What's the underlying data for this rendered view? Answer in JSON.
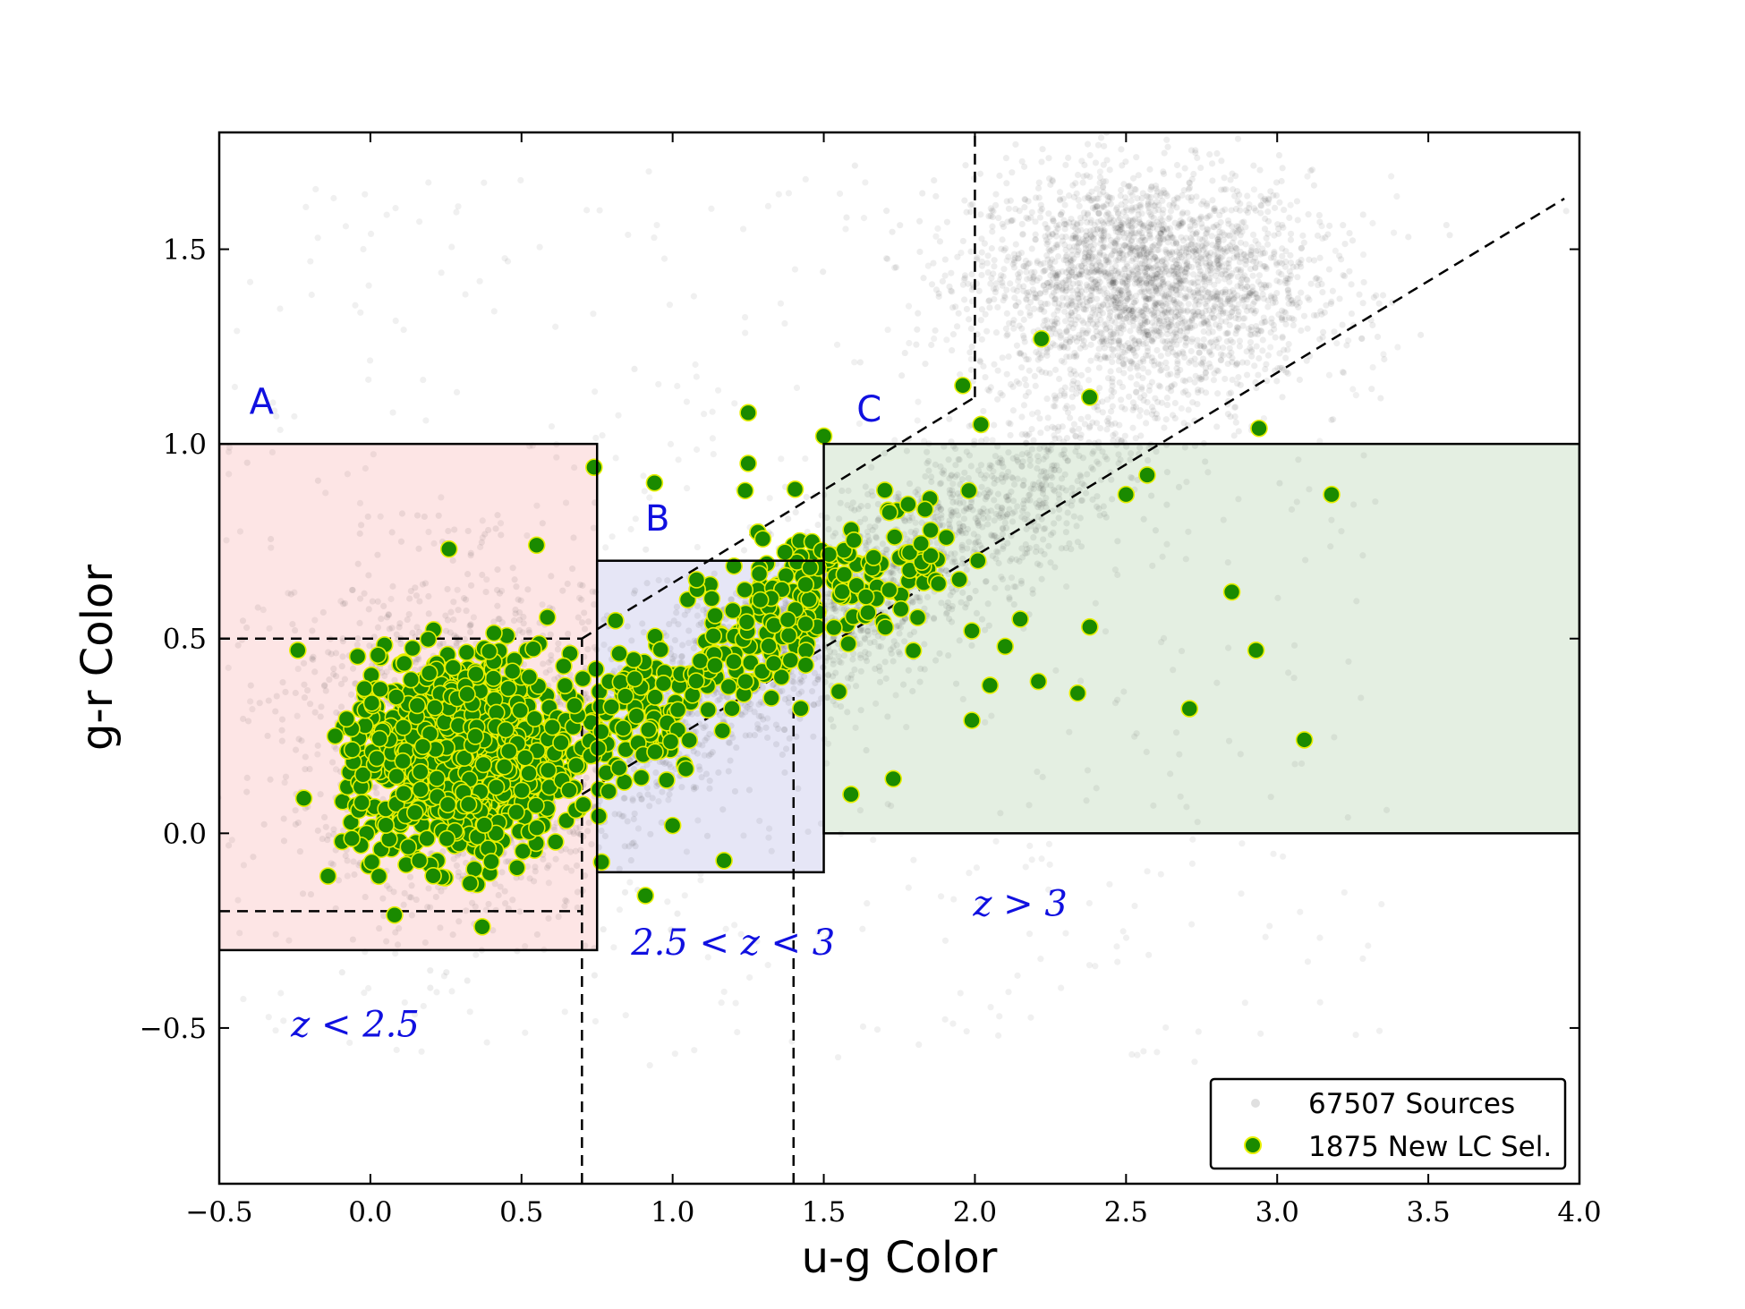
{
  "chart_data": {
    "type": "scatter",
    "title": "",
    "xlabel": "u-g Color",
    "ylabel": "g-r Color",
    "xlim": [
      -0.5,
      4.0
    ],
    "ylim": [
      -0.9,
      1.8
    ],
    "xticks": [
      -0.5,
      0.0,
      0.5,
      1.0,
      1.5,
      2.0,
      2.5,
      3.0,
      3.5,
      4.0
    ],
    "xtick_labels": [
      "−0.5",
      "0.0",
      "0.5",
      "1.0",
      "1.5",
      "2.0",
      "2.5",
      "3.0",
      "3.5",
      "4.0"
    ],
    "yticks": [
      -0.5,
      0.0,
      0.5,
      1.0,
      1.5
    ],
    "ytick_labels": [
      "−0.5",
      "0.0",
      "0.5",
      "1.0",
      "1.5"
    ],
    "grid": false,
    "legend": {
      "placement": "lower-right",
      "entries": [
        "67507 Sources",
        "1875 New LC Sel."
      ]
    },
    "series": [
      {
        "name": "67507 Sources",
        "color": "#000000",
        "description_clusters": [
          {
            "center": [
              2.55,
              1.42
            ],
            "spread": [
              0.28,
              0.14
            ]
          },
          {
            "center": [
              1.6,
              0.6
            ],
            "spread": [
              0.55,
              0.2
            ]
          },
          {
            "center": [
              0.3,
              0.25
            ],
            "spread": [
              0.3,
              0.22
            ]
          }
        ]
      },
      {
        "name": "1875 New LC Sel.",
        "color": "#1a8a00",
        "edge_color": "#e8f000",
        "highlight_points": [
          [
            2.22,
            1.27
          ],
          [
            1.96,
            1.15
          ],
          [
            2.38,
            1.12
          ],
          [
            2.02,
            1.05
          ],
          [
            1.5,
            1.02
          ],
          [
            2.94,
            1.04
          ],
          [
            1.25,
            1.08
          ],
          [
            0.74,
            0.94
          ],
          [
            3.18,
            0.87
          ],
          [
            2.57,
            0.92
          ],
          [
            2.5,
            0.87
          ],
          [
            1.98,
            0.88
          ],
          [
            2.01,
            0.7
          ],
          [
            2.85,
            0.62
          ],
          [
            2.38,
            0.53
          ],
          [
            2.15,
            0.55
          ],
          [
            2.93,
            0.47
          ],
          [
            2.1,
            0.48
          ],
          [
            1.99,
            0.52
          ],
          [
            2.05,
            0.38
          ],
          [
            2.21,
            0.39
          ],
          [
            2.34,
            0.36
          ],
          [
            2.71,
            0.32
          ],
          [
            1.99,
            0.29
          ],
          [
            3.09,
            0.24
          ],
          [
            1.73,
            0.14
          ],
          [
            1.59,
            0.1
          ],
          [
            0.91,
            -0.16
          ],
          [
            0.37,
            -0.24
          ],
          [
            0.08,
            -0.21
          ],
          [
            -0.14,
            -0.11
          ],
          [
            -0.22,
            0.09
          ],
          [
            -0.24,
            0.47
          ],
          [
            0.26,
            0.73
          ],
          [
            1.17,
            -0.07
          ],
          [
            1.0,
            0.02
          ],
          [
            0.55,
            0.74
          ],
          [
            0.94,
            0.9
          ],
          [
            1.24,
            0.88
          ],
          [
            1.25,
            0.95
          ]
        ]
      }
    ],
    "regions": [
      {
        "label": "A",
        "z_label": "z < 2.5",
        "x": [
          -0.5,
          0.75
        ],
        "y": [
          -0.3,
          1.0
        ],
        "fill": "#fde5e5"
      },
      {
        "label": "B",
        "z_label": "2.5 < z < 3",
        "x": [
          0.75,
          1.5
        ],
        "y": [
          -0.1,
          0.7
        ],
        "fill": "#e6e6f6"
      },
      {
        "label": "C",
        "z_label": "z > 3",
        "x": [
          1.5,
          4.0
        ],
        "y": [
          0.0,
          1.0
        ],
        "fill": "#e4efe2"
      }
    ],
    "dashed_lines": [
      {
        "from": [
          0.7,
          -0.9
        ],
        "to": [
          0.7,
          0.5
        ]
      },
      {
        "from": [
          -0.5,
          0.5
        ],
        "to": [
          0.7,
          0.5
        ]
      },
      {
        "from": [
          -0.5,
          -0.2
        ],
        "to": [
          0.7,
          -0.2
        ]
      },
      {
        "from": [
          1.4,
          -0.9
        ],
        "to": [
          1.4,
          0.35
        ]
      },
      {
        "from": [
          0.7,
          0.1
        ],
        "to": [
          3.95,
          1.63
        ]
      },
      {
        "from": [
          0.7,
          0.5
        ],
        "to": [
          2.0,
          1.12
        ]
      },
      {
        "from": [
          2.0,
          1.12
        ],
        "to": [
          2.0,
          1.8
        ]
      }
    ]
  }
}
